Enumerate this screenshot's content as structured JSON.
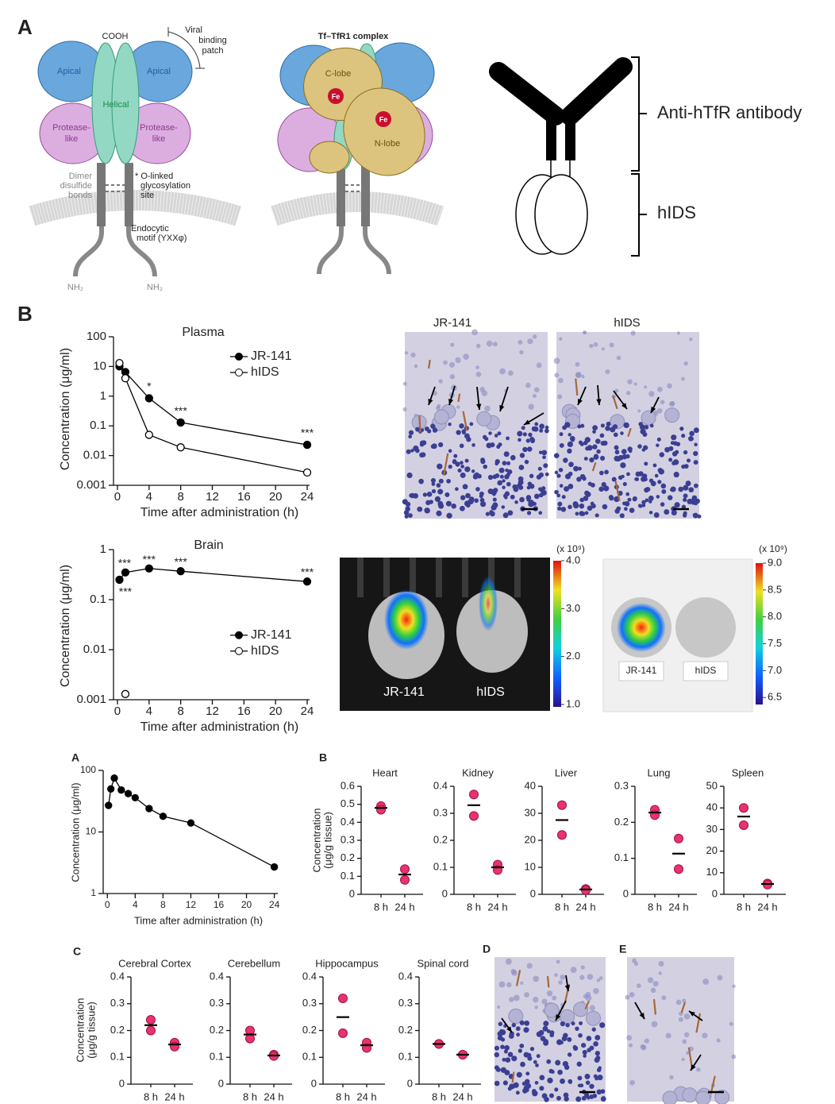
{
  "panel_labels": [
    "A",
    "B",
    "A",
    "B",
    "C",
    "D",
    "E"
  ],
  "diagram": {
    "tfr1": {
      "cooh": "COOH",
      "viral_patch": [
        "Viral",
        "binding",
        "patch"
      ],
      "apical": [
        "Apical",
        "Apical"
      ],
      "helical": "Helical",
      "protease": [
        [
          "Protease-",
          "like"
        ],
        [
          "Protease-",
          "like"
        ]
      ],
      "disulfide": [
        "Dimer",
        "disulfide",
        "bonds"
      ],
      "glycosylation": [
        "* O-linked",
        "glycosylation",
        "site"
      ],
      "endocytic": [
        "Endocytic",
        "motif (YXXφ)"
      ],
      "nh2": [
        "NH₂",
        "NH₂"
      ]
    },
    "complex": {
      "title": "Tf–TfR1 complex",
      "c_lobe": "C-lobe",
      "n_lobe": "N-lobe",
      "fe": [
        "Fe",
        "Fe"
      ]
    },
    "antibody": {
      "antibody_label": "Anti-hTfR antibody",
      "enzyme_label": "hIDS"
    }
  },
  "chart_data": [
    {
      "type": "line",
      "title": "Plasma",
      "x_label": "Time after administration (h)",
      "y_label": "Concentration (μg/ml)",
      "log_y": true,
      "xlim": [
        -0.5,
        24.3
      ],
      "ylim": [
        0.001,
        100
      ],
      "xticks": [
        0,
        4,
        8,
        12,
        16,
        20,
        24
      ],
      "yticks": [
        0.001,
        0.01,
        0.1,
        1,
        10,
        100
      ],
      "legend": "upper right",
      "series": [
        {
          "name": "JR-141",
          "color": "#000000",
          "marker": "filled",
          "x": [
            0.25,
            1,
            4,
            8,
            24
          ],
          "values": [
            10,
            6.5,
            0.85,
            0.13,
            0.023
          ]
        },
        {
          "name": "hIDS",
          "color": "#000000",
          "marker": "open",
          "x": [
            0.25,
            1,
            4,
            8,
            24
          ],
          "values": [
            13,
            4,
            0.05,
            0.019,
            0.0027
          ]
        }
      ],
      "annotations": [
        {
          "text": "*",
          "x": 4,
          "y": 2
        },
        {
          "text": "***",
          "x": 8,
          "y": 0.3
        },
        {
          "text": "***",
          "x": 24,
          "y": 0.055
        }
      ]
    },
    {
      "type": "line",
      "title": "Brain",
      "x_label": "Time after administration (h)",
      "y_label": "Concentration (μg/ml)",
      "log_y": true,
      "xlim": [
        -0.5,
        24.3
      ],
      "ylim": [
        0.001,
        1
      ],
      "xticks": [
        0,
        4,
        8,
        12,
        16,
        20,
        24
      ],
      "yticks": [
        0.001,
        0.01,
        0.1,
        1
      ],
      "legend": "center right",
      "series": [
        {
          "name": "JR-141",
          "color": "#000000",
          "marker": "filled",
          "x": [
            0.25,
            1,
            4,
            8,
            24
          ],
          "values": [
            0.25,
            0.35,
            0.42,
            0.37,
            0.23
          ]
        },
        {
          "name": "hIDS",
          "color": "#000000",
          "marker": "open",
          "x": [
            1
          ],
          "values": [
            0.0013
          ]
        }
      ],
      "annotations": [
        {
          "text": "***",
          "x": 0.9,
          "y": 0.52
        },
        {
          "text": "***",
          "x": 4,
          "y": 0.62
        },
        {
          "text": "***",
          "x": 8,
          "y": 0.55
        },
        {
          "text": "***",
          "x": 24,
          "y": 0.34
        },
        {
          "text": "***",
          "x": 1,
          "y": 0.14
        }
      ]
    },
    {
      "type": "line",
      "x_label": "Time after administration (h)",
      "y_label": "Concentration (μg/ml)",
      "log_y": true,
      "xlim": [
        -0.6,
        24.5
      ],
      "ylim": [
        1,
        100
      ],
      "xticks": [
        0,
        4,
        8,
        12,
        16,
        20,
        24
      ],
      "yticks": [
        1,
        10,
        100
      ],
      "color": "#000000",
      "marker": "filled",
      "x": [
        0.17,
        0.5,
        1,
        2,
        3,
        4,
        6,
        8,
        12,
        24
      ],
      "values": [
        27,
        50,
        75,
        48,
        42,
        36,
        24,
        18,
        14,
        2.7
      ]
    },
    {
      "type": "strip",
      "title": "Heart",
      "y_label": [
        "Concentration",
        "(μg/g tissue)"
      ],
      "categories": [
        "8 h",
        "24 h"
      ],
      "points": [
        [
          0.49,
          0.47
        ],
        [
          0.14,
          0.08
        ]
      ],
      "means": [
        0.48,
        0.11
      ],
      "ylim": [
        0,
        0.6
      ],
      "yticks": [
        0,
        0.1,
        0.2,
        0.3,
        0.4,
        0.5,
        0.6
      ],
      "color": "#e8336d"
    },
    {
      "type": "strip",
      "title": "Kidney",
      "categories": [
        "8 h",
        "24 h"
      ],
      "points": [
        [
          0.37,
          0.29
        ],
        [
          0.11,
          0.09
        ]
      ],
      "means": [
        0.33,
        0.1
      ],
      "ylim": [
        0,
        0.4
      ],
      "yticks": [
        0,
        0.1,
        0.2,
        0.3,
        0.4
      ],
      "color": "#e8336d"
    },
    {
      "type": "strip",
      "title": "Liver",
      "categories": [
        "8 h",
        "24 h"
      ],
      "points": [
        [
          33,
          22
        ],
        [
          2,
          1.5
        ]
      ],
      "means": [
        27.5,
        1.8
      ],
      "ylim": [
        0,
        40
      ],
      "yticks": [
        0,
        10,
        20,
        30,
        40
      ],
      "color": "#e8336d"
    },
    {
      "type": "strip",
      "title": "Lung",
      "categories": [
        "8 h",
        "24 h"
      ],
      "points": [
        [
          0.235,
          0.22
        ],
        [
          0.155,
          0.07
        ]
      ],
      "means": [
        0.227,
        0.113
      ],
      "ylim": [
        0,
        0.3
      ],
      "yticks": [
        0,
        0.1,
        0.2,
        0.3
      ],
      "color": "#e8336d"
    },
    {
      "type": "strip",
      "title": "Spleen",
      "categories": [
        "8 h",
        "24 h"
      ],
      "points": [
        [
          40,
          32
        ],
        [
          5,
          4.5
        ]
      ],
      "means": [
        36,
        4.8
      ],
      "ylim": [
        0,
        50
      ],
      "yticks": [
        0,
        10,
        20,
        30,
        40,
        50
      ],
      "color": "#e8336d"
    },
    {
      "type": "strip",
      "title": "Cerebral Cortex",
      "y_label": [
        "Concentration",
        "(μg/g tissue)"
      ],
      "categories": [
        "8 h",
        "24 h"
      ],
      "points": [
        [
          0.24,
          0.2
        ],
        [
          0.155,
          0.14
        ]
      ],
      "means": [
        0.22,
        0.148
      ],
      "ylim": [
        0,
        0.4
      ],
      "yticks": [
        0,
        0.1,
        0.2,
        0.3,
        0.4
      ],
      "color": "#e8336d"
    },
    {
      "type": "strip",
      "title": "Cerebellum",
      "categories": [
        "8 h",
        "24 h"
      ],
      "points": [
        [
          0.2,
          0.17
        ],
        [
          0.11,
          0.105
        ]
      ],
      "means": [
        0.185,
        0.107
      ],
      "ylim": [
        0,
        0.4
      ],
      "yticks": [
        0,
        0.1,
        0.2,
        0.3,
        0.4
      ],
      "color": "#e8336d"
    },
    {
      "type": "strip",
      "title": "Hippocampus",
      "categories": [
        "8 h",
        "24 h"
      ],
      "points": [
        [
          0.32,
          0.19
        ],
        [
          0.155,
          0.135
        ]
      ],
      "means": [
        0.25,
        0.145
      ],
      "ylim": [
        0,
        0.4
      ],
      "yticks": [
        0,
        0.1,
        0.2,
        0.3,
        0.4
      ],
      "color": "#e8336d"
    },
    {
      "type": "strip",
      "title": "Spinal cord",
      "categories": [
        "8 h",
        "24 h"
      ],
      "points": [
        [
          0.15,
          0.15
        ],
        [
          0.11,
          0.11
        ]
      ],
      "means": [
        0.15,
        0.11
      ],
      "ylim": [
        0,
        0.4
      ],
      "yticks": [
        0,
        0.1,
        0.2,
        0.3,
        0.4
      ],
      "color": "#e8336d"
    }
  ],
  "images": {
    "histology": [
      "JR-141",
      "hIDS"
    ],
    "imaging_1": {
      "labels": [
        "JR-141",
        "hIDS"
      ],
      "colorbar_unit": "(x 10⁹)",
      "colorbar_lim": [
        0.95,
        4
      ],
      "colorbar_ticks": [
        {
          "value": 1,
          "label": "1.0"
        },
        {
          "value": 2,
          "label": "2.0"
        },
        {
          "value": 3,
          "label": "3.0"
        },
        {
          "value": 4,
          "label": "4.0"
        }
      ]
    },
    "imaging_2": {
      "labels": [
        "JR-141",
        "hIDS"
      ],
      "colorbar_unit": "(x 10⁹)",
      "colorbar_lim": [
        6.37,
        9
      ],
      "colorbar_ticks": [
        {
          "value": 6.5,
          "label": "6.5"
        },
        {
          "value": 7,
          "label": "7.0"
        },
        {
          "value": 7.5,
          "label": "7.5"
        },
        {
          "value": 8,
          "label": "8.0"
        },
        {
          "value": 8.5,
          "label": "8.5"
        },
        {
          "value": 9,
          "label": "9.0"
        }
      ]
    }
  }
}
